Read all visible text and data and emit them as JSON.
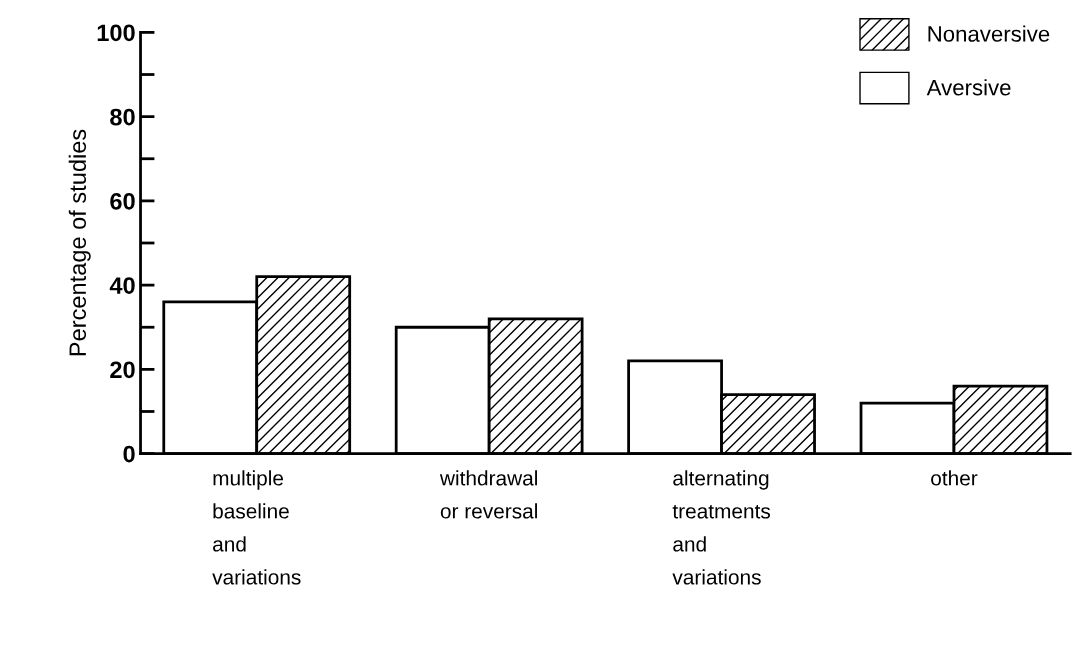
{
  "chart_data": {
    "type": "bar",
    "categories": [
      "multiple\nbaseline\nand\nvariations",
      "withdrawal\nor reversal",
      "alternating\ntreatments\nand\nvariations",
      "other"
    ],
    "series": [
      {
        "name": "Aversive",
        "color": "#000000",
        "values": [
          36,
          30,
          22,
          12
        ]
      },
      {
        "name": "Nonaversive",
        "color": "#000000",
        "values": [
          42,
          32,
          14,
          16
        ]
      }
    ],
    "ylabel": "Percentage of studies",
    "ylim": [
      0,
      100
    ],
    "yticks": [
      0,
      {
        "value": 10,
        "label": null
      },
      20,
      {
        "value": 30,
        "label": null
      },
      40,
      {
        "value": 50,
        "label": null
      },
      60,
      {
        "value": 70,
        "label": null
      },
      80,
      {
        "value": 90,
        "label": null
      },
      100
    ],
    "legend": "top right",
    "grid": false
  }
}
